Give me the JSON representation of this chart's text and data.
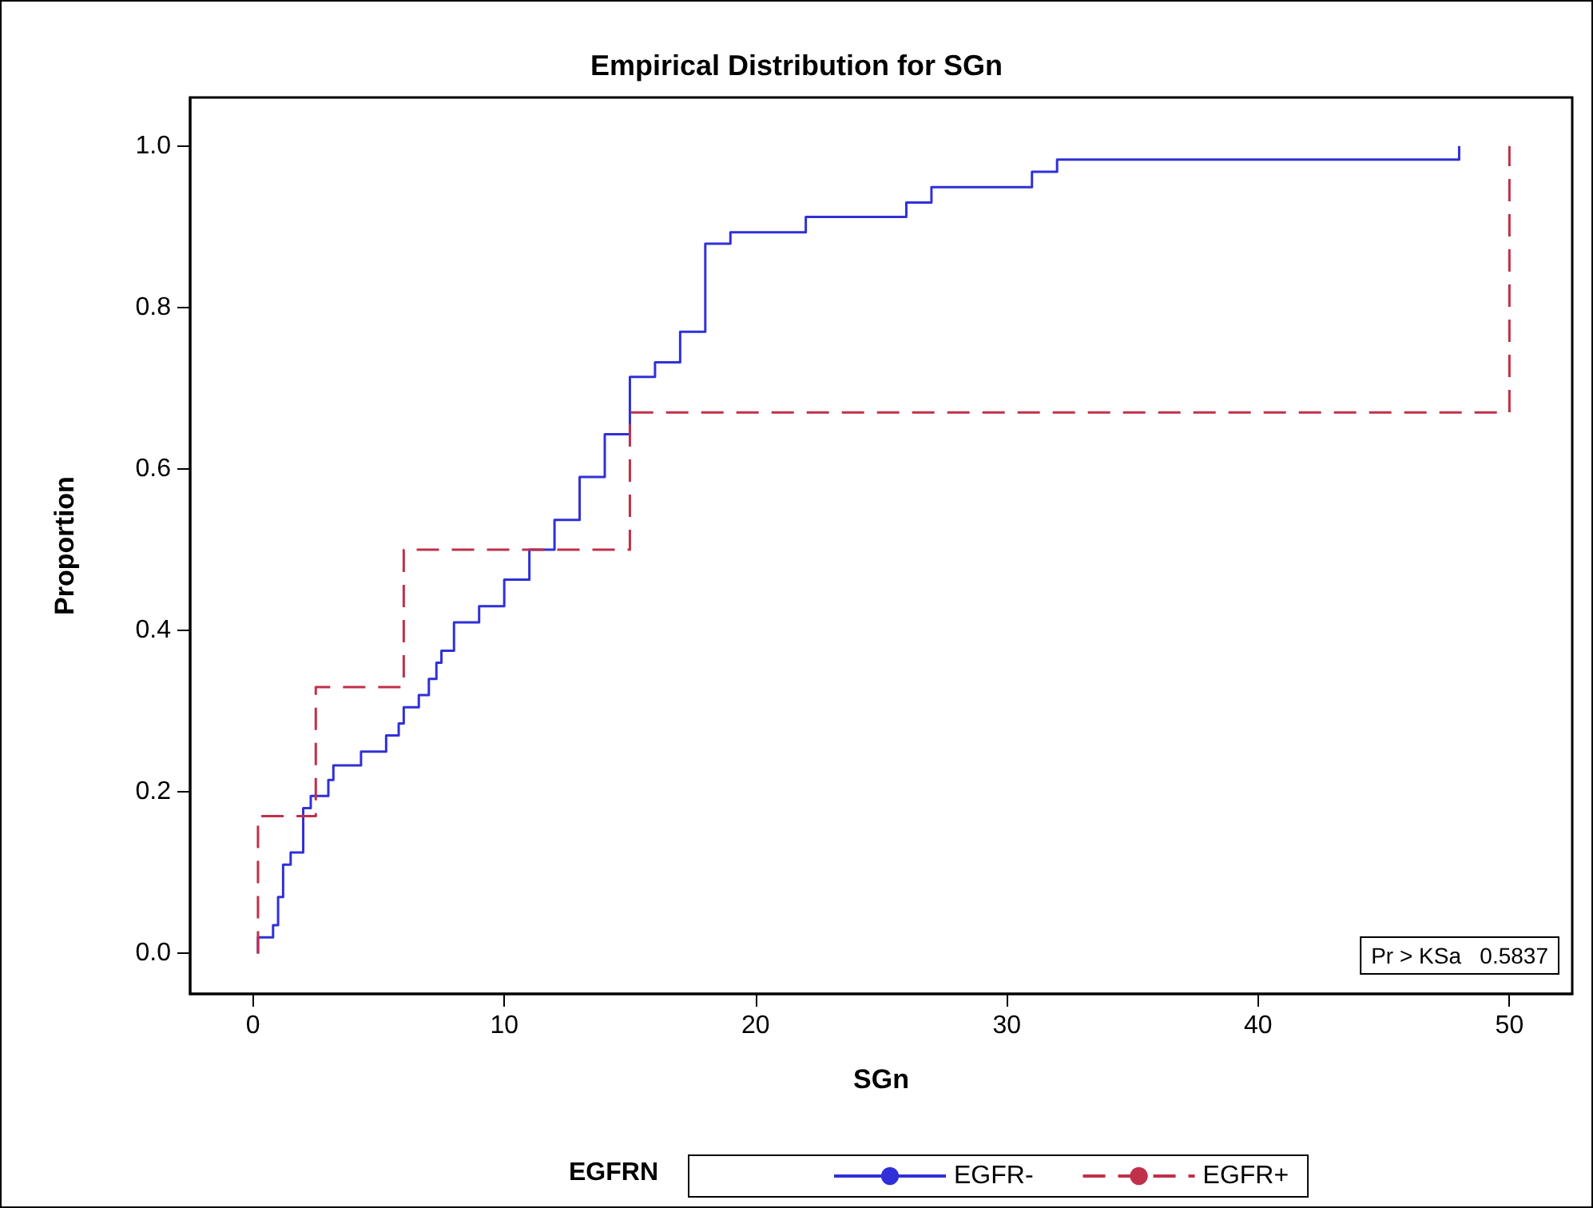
{
  "chart_data": {
    "type": "step",
    "title": "Empirical Distribution for SGn",
    "xlabel": "SGn",
    "ylabel": "Proportion",
    "legend_title": "EGFRN",
    "legend": "bottom",
    "marker": "none",
    "grid": false,
    "xlim": [
      -2.5,
      52.5
    ],
    "xticks": [
      0,
      10,
      20,
      30,
      40,
      50
    ],
    "ylim": [
      -0.05,
      1.06
    ],
    "yticks": [
      {
        "value": 0,
        "label": "0.0"
      },
      {
        "value": 0.2,
        "label": "0.2"
      },
      {
        "value": 0.4,
        "label": "0.4"
      },
      {
        "value": 0.6,
        "label": "0.6"
      },
      {
        "value": 0.8,
        "label": "0.8"
      },
      {
        "value": 1,
        "label": "1.0"
      }
    ],
    "annotations": [
      "Pr > KSa   0.5837"
    ],
    "series": [
      {
        "name": "EGFR-",
        "color": "#3030d8",
        "line_style": "solid",
        "x": [
          0.2,
          0.2,
          0.8,
          1.0,
          1.2,
          1.5,
          2.0,
          2.3,
          3.0,
          3.2,
          4.3,
          5.3,
          5.8,
          6.0,
          6.6,
          7.0,
          7.3,
          7.5,
          8.0,
          9.0,
          10.0,
          11.0,
          12.0,
          13.0,
          14.0,
          15.0,
          16.0,
          17.0,
          18.0,
          19.0,
          22.0,
          26.0,
          27.0,
          31.0,
          32.0,
          48.0
        ],
        "values": [
          0,
          0.02,
          0.035,
          0.07,
          0.11,
          0.125,
          0.18,
          0.195,
          0.215,
          0.233,
          0.25,
          0.27,
          0.285,
          0.305,
          0.32,
          0.34,
          0.36,
          0.375,
          0.41,
          0.43,
          0.463,
          0.5,
          0.537,
          0.59,
          0.643,
          0.714,
          0.732,
          0.77,
          0.879,
          0.893,
          0.912,
          0.93,
          0.949,
          0.968,
          0.983,
          1.0
        ]
      },
      {
        "name": "EGFR+",
        "color": "#c0304a",
        "line_style": "dashed",
        "x": [
          0.2,
          0.2,
          2.5,
          6.0,
          15.0,
          50.0
        ],
        "values": [
          0,
          0.17,
          0.33,
          0.5,
          0.67,
          1.0
        ]
      }
    ]
  }
}
